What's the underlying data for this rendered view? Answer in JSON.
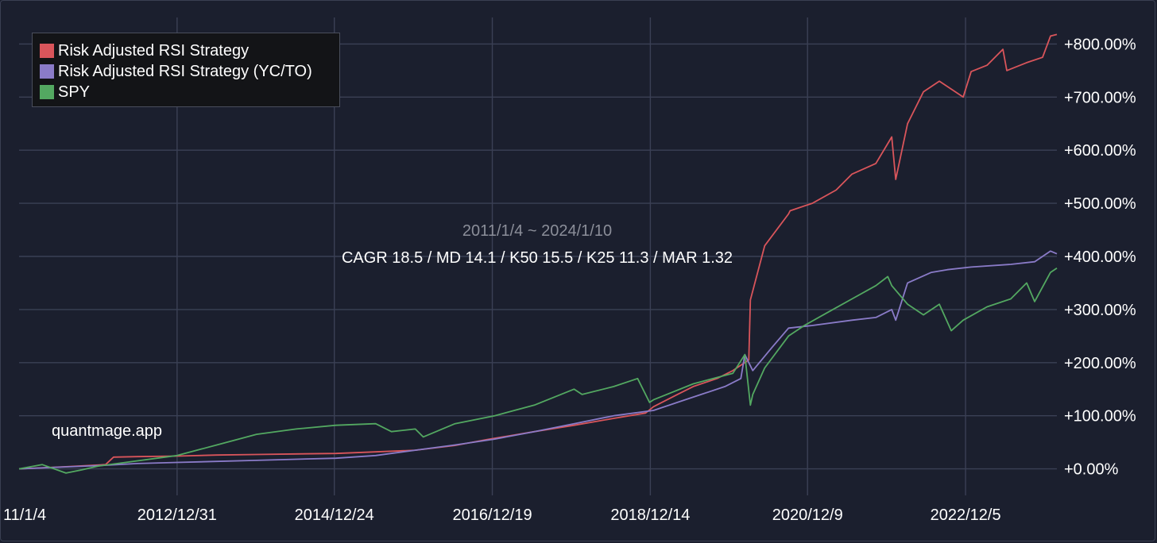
{
  "chart_data": {
    "type": "line",
    "title": "",
    "date_range": "2011/1/4 ~ 2024/1/10",
    "stats": "CAGR 18.5 / MD 14.1 / K50 15.5 / K25 11.3 / MAR 1.32",
    "watermark": "quantmage.app",
    "xlabel": "",
    "ylabel": "",
    "x_tick_labels": [
      "11/1/4",
      "2012/12/31",
      "2014/12/24",
      "2016/12/19",
      "2018/12/14",
      "2020/12/9",
      "2022/12/5"
    ],
    "x_tick_years": [
      2011.01,
      2013.0,
      2014.98,
      2016.97,
      2018.96,
      2020.94,
      2022.93
    ],
    "x_range": [
      2011.01,
      2024.08
    ],
    "y_tick_labels": [
      "+0.00%",
      "+100.00%",
      "+200.00%",
      "+300.00%",
      "+400.00%",
      "+500.00%",
      "+600.00%",
      "+700.00%",
      "+800.00%"
    ],
    "y_ticks": [
      0,
      100,
      200,
      300,
      400,
      500,
      600,
      700,
      800
    ],
    "ylim": [
      -50,
      850
    ],
    "grid": true,
    "legend_position": "top-left",
    "series": [
      {
        "name": "Risk Adjusted RSI Strategy",
        "color": "#d9555b",
        "x": [
          2011.01,
          2011.6,
          2012.1,
          2012.2,
          2012.5,
          2013.0,
          2013.5,
          2014.0,
          2014.5,
          2015.0,
          2015.5,
          2016.0,
          2016.5,
          2016.9,
          2017.1,
          2017.5,
          2018.0,
          2018.5,
          2018.9,
          2019.0,
          2019.3,
          2019.5,
          2019.8,
          2020.0,
          2020.2,
          2020.22,
          2020.4,
          2020.7,
          2020.72,
          2021.0,
          2021.3,
          2021.5,
          2021.8,
          2022.0,
          2022.05,
          2022.2,
          2022.4,
          2022.6,
          2022.9,
          2023.0,
          2023.2,
          2023.4,
          2023.45,
          2023.7,
          2023.9,
          2024.0,
          2024.08
        ],
        "values": [
          0,
          4,
          8,
          22,
          23,
          24,
          26,
          27,
          28,
          29,
          32,
          35,
          44,
          55,
          60,
          70,
          82,
          95,
          105,
          117,
          140,
          155,
          170,
          185,
          205,
          318,
          420,
          480,
          486,
          500,
          525,
          555,
          575,
          625,
          545,
          650,
          710,
          730,
          700,
          748,
          760,
          790,
          750,
          765,
          775,
          815,
          818
        ]
      },
      {
        "name": "Risk Adjusted RSI Strategy (YC/TO)",
        "color": "#8a7bc8",
        "x": [
          2011.01,
          2011.5,
          2012.0,
          2012.5,
          2013.0,
          2013.5,
          2014.0,
          2014.5,
          2015.0,
          2015.5,
          2016.0,
          2016.5,
          2017.0,
          2017.5,
          2018.0,
          2018.5,
          2019.0,
          2019.3,
          2019.6,
          2019.9,
          2020.1,
          2020.15,
          2020.25,
          2020.5,
          2020.7,
          2021.0,
          2021.5,
          2021.8,
          2022.0,
          2022.05,
          2022.2,
          2022.5,
          2022.7,
          2023.0,
          2023.5,
          2023.8,
          2024.0,
          2024.08
        ],
        "values": [
          0,
          3,
          6,
          10,
          12,
          14,
          16,
          18,
          20,
          25,
          35,
          45,
          56,
          70,
          85,
          100,
          110,
          125,
          140,
          155,
          170,
          215,
          185,
          230,
          265,
          270,
          280,
          285,
          300,
          280,
          350,
          370,
          375,
          380,
          385,
          390,
          410,
          405
        ]
      },
      {
        "name": "SPY",
        "color": "#53a861",
        "x": [
          2011.01,
          2011.3,
          2011.6,
          2011.8,
          2012.0,
          2012.5,
          2013.0,
          2013.5,
          2014.0,
          2014.5,
          2015.0,
          2015.5,
          2015.7,
          2016.0,
          2016.1,
          2016.5,
          2017.0,
          2017.5,
          2018.0,
          2018.1,
          2018.5,
          2018.8,
          2018.95,
          2019.0,
          2019.5,
          2020.0,
          2020.15,
          2020.22,
          2020.25,
          2020.4,
          2020.7,
          2020.9,
          2021.2,
          2021.5,
          2021.8,
          2021.95,
          2022.0,
          2022.2,
          2022.4,
          2022.6,
          2022.75,
          2022.9,
          2023.2,
          2023.5,
          2023.7,
          2023.8,
          2024.0,
          2024.08
        ],
        "values": [
          0,
          8,
          -8,
          -2,
          5,
          15,
          25,
          45,
          65,
          75,
          82,
          85,
          70,
          75,
          60,
          85,
          100,
          120,
          150,
          140,
          155,
          170,
          125,
          130,
          160,
          180,
          215,
          120,
          140,
          190,
          250,
          270,
          295,
          320,
          345,
          362,
          345,
          310,
          290,
          310,
          260,
          280,
          305,
          320,
          350,
          315,
          370,
          378
        ]
      }
    ]
  }
}
